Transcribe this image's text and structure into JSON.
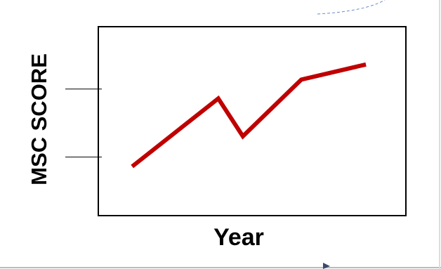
{
  "chart_data": {
    "type": "line",
    "x_label": "Year",
    "y_label": "MSC SCORE",
    "x": [
      1.1,
      3.9,
      4.7,
      6.6,
      8.7
    ],
    "series": [
      {
        "color": "#c00000",
        "values": [
          2.6,
          6.2,
          4.2,
          7.2,
          8.0
        ]
      }
    ],
    "xlim": [
      0,
      10
    ],
    "ylim": [
      0,
      10
    ],
    "yticks": [
      3.1,
      6.7
    ]
  }
}
